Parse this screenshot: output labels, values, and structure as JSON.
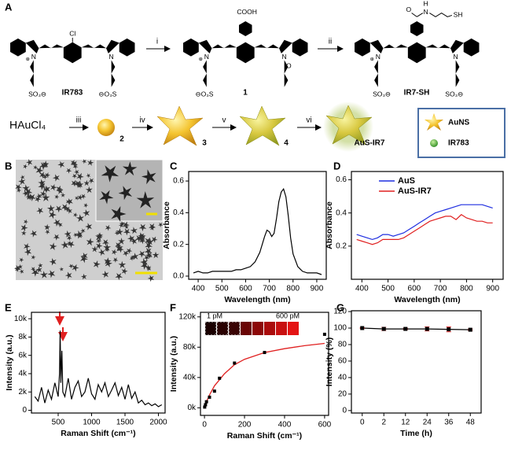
{
  "figure": {
    "panel_labels": [
      "A",
      "B",
      "C",
      "D",
      "E",
      "F",
      "G"
    ]
  },
  "scheme": {
    "molecules": [
      {
        "name": "IR783",
        "atoms": [
          "Cl",
          "N",
          "⊕",
          "N",
          "SO₃⊖",
          "⊖O₃S"
        ]
      },
      {
        "name": "1",
        "atoms": [
          "COOH",
          "N",
          "⊕",
          "N",
          "O",
          "⊖O₃S"
        ]
      },
      {
        "name": "IR7-SH",
        "atoms": [
          "O",
          "H",
          "N",
          "SH",
          "N",
          "⊕",
          "N",
          "SO₃⊖",
          "SO₃⊖"
        ]
      }
    ],
    "steps": [
      "i",
      "ii",
      "iii",
      "iv",
      "v",
      "vi"
    ],
    "precursor": "HAuCl₄",
    "particles": [
      "2",
      "3",
      "4",
      "AuS-IR7"
    ],
    "legend": [
      "AuNS",
      "IR783"
    ]
  },
  "chart_data": [
    {
      "type": "line",
      "xlabel": "Wavelength (nm)",
      "ylabel": "Absorbance",
      "color": "#000000",
      "x": [
        380,
        400,
        420,
        440,
        460,
        480,
        500,
        520,
        540,
        560,
        580,
        600,
        620,
        640,
        660,
        680,
        690,
        700,
        710,
        720,
        730,
        740,
        750,
        760,
        770,
        780,
        790,
        800,
        820,
        840,
        860,
        880,
        900,
        920
      ],
      "values": [
        0.02,
        0.03,
        0.02,
        0.02,
        0.03,
        0.03,
        0.03,
        0.03,
        0.03,
        0.04,
        0.04,
        0.05,
        0.06,
        0.09,
        0.15,
        0.25,
        0.29,
        0.28,
        0.25,
        0.27,
        0.36,
        0.47,
        0.53,
        0.55,
        0.5,
        0.38,
        0.24,
        0.14,
        0.06,
        0.03,
        0.02,
        0.02,
        0.02,
        0.01
      ],
      "xlim": [
        360,
        940
      ],
      "ylim": [
        -0.02,
        0.66
      ],
      "xticks": [
        400,
        500,
        600,
        700,
        800,
        900
      ],
      "yticks": [
        {
          "value": 0,
          "label": "0.0"
        },
        0.2,
        0.4,
        0.6
      ]
    },
    {
      "type": "line",
      "xlabel": "Wavelength (nm)",
      "ylabel": "Absorbance",
      "legend": "upper left",
      "x": [
        380,
        400,
        420,
        440,
        460,
        480,
        500,
        520,
        540,
        560,
        580,
        600,
        620,
        640,
        660,
        680,
        700,
        720,
        740,
        760,
        780,
        800,
        820,
        840,
        860,
        880,
        900
      ],
      "series": [
        {
          "name": "AuS",
          "color": "#1f2ee0",
          "values": [
            0.27,
            0.26,
            0.25,
            0.24,
            0.25,
            0.27,
            0.27,
            0.26,
            0.27,
            0.28,
            0.3,
            0.32,
            0.34,
            0.36,
            0.38,
            0.4,
            0.41,
            0.42,
            0.43,
            0.44,
            0.45,
            0.45,
            0.45,
            0.45,
            0.45,
            0.44,
            0.43
          ]
        },
        {
          "name": "AuS-IR7",
          "color": "#e02020",
          "values": [
            0.24,
            0.23,
            0.22,
            0.21,
            0.22,
            0.24,
            0.24,
            0.24,
            0.24,
            0.25,
            0.27,
            0.29,
            0.31,
            0.33,
            0.35,
            0.36,
            0.37,
            0.38,
            0.38,
            0.36,
            0.39,
            0.37,
            0.36,
            0.35,
            0.35,
            0.34,
            0.34
          ]
        }
      ],
      "xlim": [
        360,
        940
      ],
      "ylim": [
        0,
        0.65
      ],
      "xticks": [
        400,
        500,
        600,
        700,
        800,
        900
      ],
      "yticks": [
        0.2,
        0.4,
        0.6
      ]
    },
    {
      "type": "line",
      "xlabel": "Raman Shift (cm⁻¹)",
      "ylabel": "Intensity (a.u.)",
      "color": "#000000",
      "x": [
        150,
        200,
        250,
        300,
        350,
        400,
        450,
        500,
        520,
        530,
        540,
        555,
        570,
        600,
        650,
        700,
        750,
        800,
        850,
        900,
        950,
        1000,
        1050,
        1100,
        1150,
        1200,
        1250,
        1300,
        1350,
        1400,
        1450,
        1500,
        1550,
        1600,
        1650,
        1700,
        1750,
        1800,
        1850,
        1900,
        1950,
        2000,
        2050
      ],
      "values": [
        1500,
        1000,
        2500,
        800,
        2200,
        1200,
        3000,
        1500,
        4000,
        8700,
        3000,
        6500,
        2000,
        1500,
        3500,
        1200,
        2500,
        3200,
        1500,
        2000,
        3500,
        1800,
        1200,
        2800,
        2000,
        3000,
        1500,
        2200,
        3000,
        1600,
        2500,
        1200,
        2800,
        1300,
        2000,
        800,
        1100,
        600,
        800,
        500,
        700,
        400,
        600
      ],
      "xlim": [
        100,
        2100
      ],
      "ylim": [
        -300,
        10700
      ],
      "xticks": [
        500,
        1000,
        1500,
        2000
      ],
      "yticks": [
        0,
        {
          "value": 2000,
          "label": "2k"
        },
        {
          "value": 4000,
          "label": "4k"
        },
        {
          "value": 6000,
          "label": "6k"
        },
        {
          "value": 8000,
          "label": "8k"
        },
        {
          "value": 10000,
          "label": "10k"
        }
      ]
    },
    {
      "type": "scatter",
      "xlabel": "Raman Shift (cm⁻¹)",
      "ylabel": "Intensity (a.u.)",
      "points": {
        "color": "#000000",
        "x": [
          1,
          5,
          10,
          25,
          50,
          75,
          150,
          300,
          600
        ],
        "values": [
          1000,
          4000,
          8000,
          14000,
          22000,
          39000,
          59000,
          73000,
          97000
        ]
      },
      "fit": {
        "color": "#e02020",
        "x": [
          0,
          10,
          25,
          50,
          100,
          150,
          200,
          300,
          400,
          500,
          600
        ],
        "values": [
          0,
          8000,
          17000,
          29000,
          45000,
          57000,
          64000,
          73000,
          78000,
          82000,
          85000
        ]
      },
      "inset": {
        "labels": [
          "1 pM",
          "600 pM"
        ],
        "colors": [
          "#1a0000",
          "#2a0202",
          "#3a0404",
          "#6a0606",
          "#8c0808",
          "#aa0c0c",
          "#c81010",
          "#e41414"
        ]
      },
      "xlim": [
        -20,
        620
      ],
      "ylim": [
        -10000,
        126000
      ],
      "xticks": [
        0,
        200,
        400,
        600
      ],
      "yticks": [
        {
          "value": 0,
          "label": "0k"
        },
        {
          "value": 40000,
          "label": "40k"
        },
        {
          "value": 80000,
          "label": "80k"
        },
        {
          "value": 120000,
          "label": "120k"
        }
      ]
    },
    {
      "type": "line",
      "xlabel": "Time (h)",
      "ylabel": "Intensity (%)",
      "color": "#000000",
      "error_color": "#e83030",
      "marker": "square",
      "categories": [
        "0",
        "2",
        "12",
        "24",
        "36",
        "48"
      ],
      "values": [
        100,
        99,
        99,
        99,
        98.5,
        98
      ],
      "errors": [
        0.5,
        2,
        1,
        2.5,
        3,
        1
      ],
      "ylim": [
        -3,
        121
      ],
      "yticks": [
        0,
        20,
        40,
        60,
        80,
        100,
        120
      ]
    }
  ]
}
